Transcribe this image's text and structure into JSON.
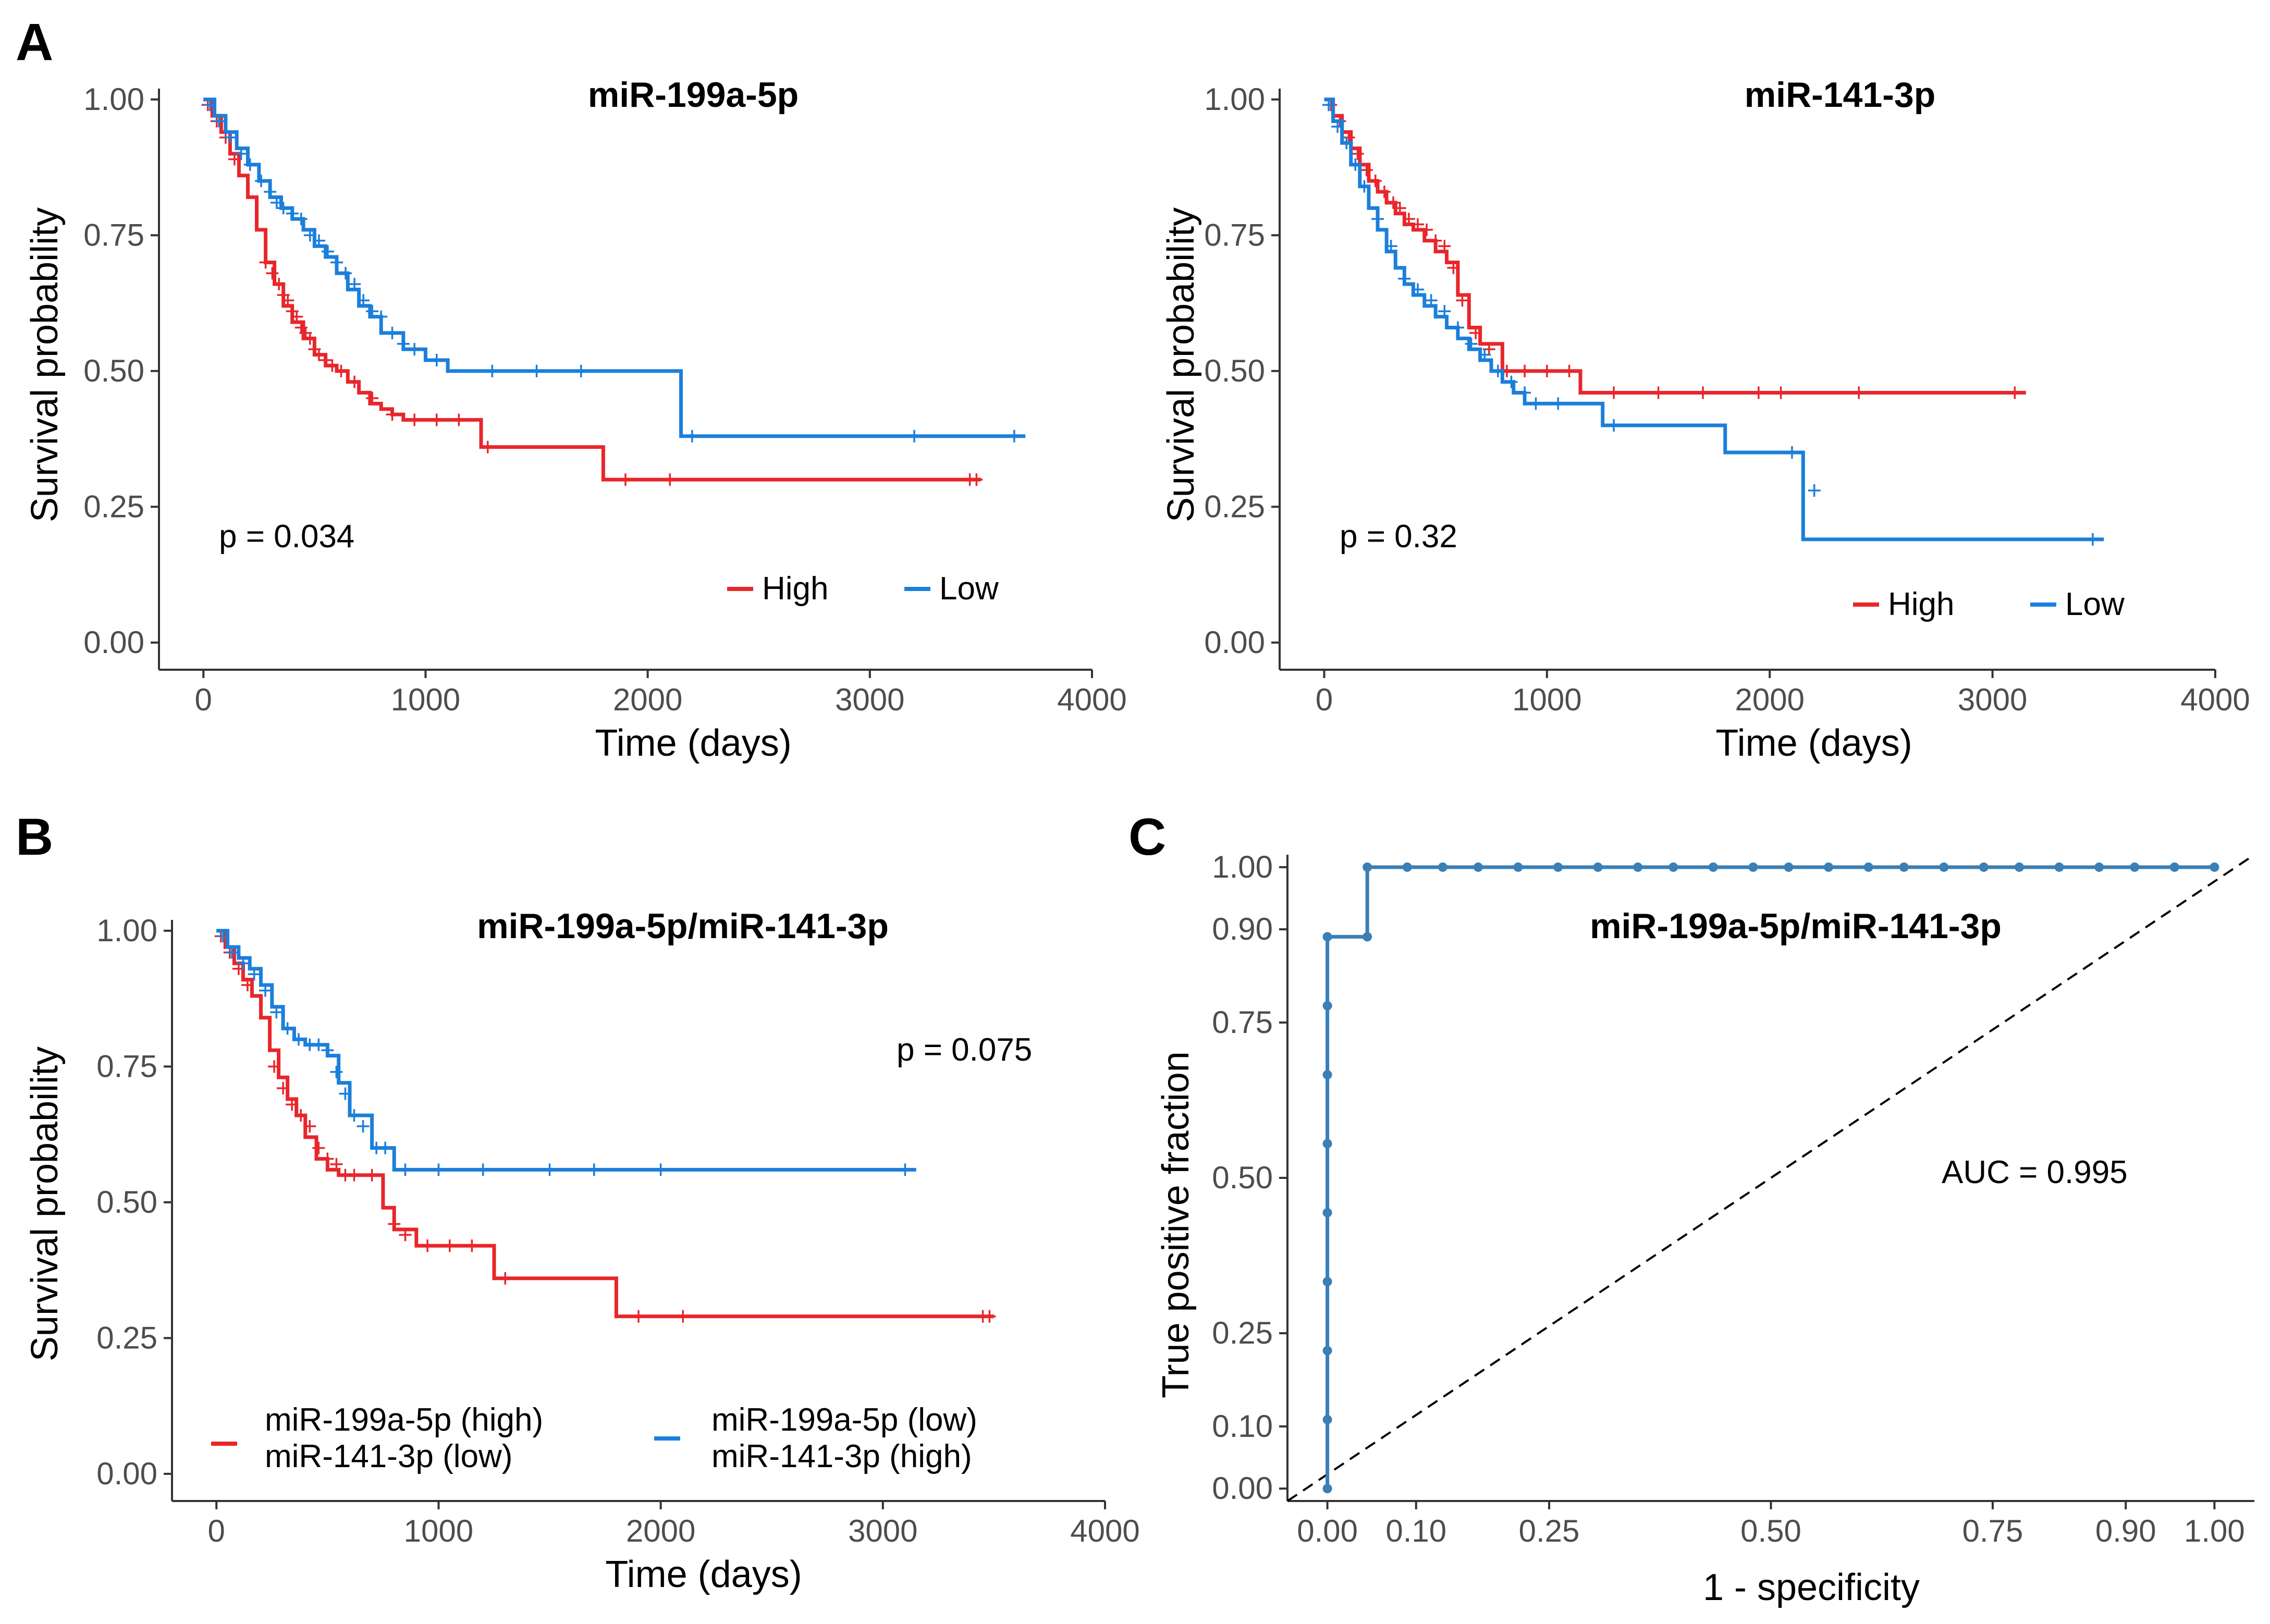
{
  "figure": {
    "panel_labels": [
      "A",
      "B",
      "C"
    ]
  },
  "chart_data": [
    {
      "id": "A1",
      "type": "line",
      "title": "miR-199a-5p",
      "xlabel": "Time (days)",
      "ylabel": "Survival probability",
      "xlim": [
        -200,
        4000
      ],
      "ylim": [
        -0.05,
        1.02
      ],
      "xticks": [
        0,
        1000,
        2000,
        3000,
        4000
      ],
      "xtick_labels": [
        "0",
        "1000",
        "2000",
        "3000",
        "4000"
      ],
      "yticks": [
        0,
        0.25,
        0.5,
        0.75,
        1.0
      ],
      "ytick_labels": [
        "0.00",
        "0.25",
        "0.50",
        "0.75",
        "1.00"
      ],
      "annotation": "p = 0.034",
      "legend": [
        "High",
        "Low"
      ],
      "legend_position": "bottom-right",
      "series": [
        {
          "name": "High",
          "color": "#e8262b",
          "x": [
            0,
            40,
            80,
            120,
            160,
            200,
            240,
            280,
            320,
            360,
            400,
            450,
            500,
            550,
            600,
            650,
            700,
            750,
            800,
            850,
            900,
            1250,
            1800,
            3500
          ],
          "y": [
            1.0,
            0.97,
            0.94,
            0.9,
            0.86,
            0.82,
            0.76,
            0.7,
            0.66,
            0.62,
            0.59,
            0.56,
            0.53,
            0.51,
            0.5,
            0.48,
            0.46,
            0.44,
            0.43,
            0.42,
            0.41,
            0.36,
            0.3,
            0.3
          ],
          "censor_x": [
            20,
            60,
            100,
            140,
            280,
            310,
            340,
            360,
            380,
            400,
            420,
            440,
            460,
            480,
            500,
            520,
            550,
            580,
            620,
            680,
            760,
            850,
            950,
            1050,
            1150,
            1280,
            1900,
            2100,
            3450,
            3480
          ],
          "censor_y": [
            0.99,
            0.96,
            0.93,
            0.89,
            0.7,
            0.68,
            0.66,
            0.64,
            0.63,
            0.61,
            0.6,
            0.58,
            0.57,
            0.56,
            0.54,
            0.53,
            0.52,
            0.51,
            0.5,
            0.48,
            0.45,
            0.42,
            0.41,
            0.41,
            0.41,
            0.36,
            0.3,
            0.3,
            0.3,
            0.3
          ]
        },
        {
          "name": "Low",
          "color": "#1b7fdb",
          "x": [
            0,
            50,
            100,
            150,
            200,
            250,
            300,
            350,
            400,
            450,
            500,
            550,
            600,
            650,
            700,
            750,
            800,
            900,
            1000,
            1100,
            2150,
            3700
          ],
          "y": [
            1.0,
            0.97,
            0.94,
            0.91,
            0.88,
            0.85,
            0.82,
            0.8,
            0.78,
            0.76,
            0.73,
            0.71,
            0.68,
            0.65,
            0.62,
            0.6,
            0.57,
            0.54,
            0.52,
            0.5,
            0.38,
            0.38
          ],
          "censor_x": [
            30,
            70,
            120,
            170,
            210,
            260,
            300,
            330,
            360,
            400,
            440,
            480,
            520,
            560,
            600,
            640,
            680,
            720,
            760,
            800,
            850,
            900,
            950,
            1050,
            1300,
            1500,
            1700,
            2200,
            3200,
            3650
          ],
          "censor_y": [
            0.99,
            0.96,
            0.93,
            0.9,
            0.88,
            0.85,
            0.83,
            0.81,
            0.8,
            0.79,
            0.78,
            0.75,
            0.74,
            0.72,
            0.7,
            0.68,
            0.66,
            0.63,
            0.61,
            0.6,
            0.57,
            0.55,
            0.54,
            0.52,
            0.5,
            0.5,
            0.5,
            0.38,
            0.38,
            0.38
          ]
        }
      ]
    },
    {
      "id": "A2",
      "type": "line",
      "title": "miR-141-3p",
      "xlabel": "Time (days)",
      "ylabel": "Survival probability",
      "xlim": [
        -200,
        4000
      ],
      "ylim": [
        -0.05,
        1.02
      ],
      "xticks": [
        0,
        1000,
        2000,
        3000,
        4000
      ],
      "xtick_labels": [
        "0",
        "1000",
        "2000",
        "3000",
        "4000"
      ],
      "yticks": [
        0,
        0.25,
        0.5,
        0.75,
        1.0
      ],
      "ytick_labels": [
        "0.00",
        "0.25",
        "0.50",
        "0.75",
        "1.00"
      ],
      "annotation": "p = 0.32",
      "legend": [
        "High",
        "Low"
      ],
      "legend_position": "bottom-right",
      "series": [
        {
          "name": "High",
          "color": "#e8262b",
          "x": [
            0,
            40,
            80,
            120,
            160,
            200,
            240,
            280,
            320,
            360,
            400,
            450,
            500,
            550,
            600,
            650,
            700,
            800,
            1150,
            3150
          ],
          "y": [
            1.0,
            0.97,
            0.94,
            0.91,
            0.88,
            0.85,
            0.83,
            0.81,
            0.79,
            0.77,
            0.76,
            0.74,
            0.72,
            0.7,
            0.64,
            0.58,
            0.55,
            0.5,
            0.46,
            0.46
          ],
          "censor_x": [
            30,
            70,
            110,
            150,
            190,
            230,
            270,
            310,
            340,
            380,
            420,
            460,
            500,
            540,
            580,
            620,
            680,
            740,
            820,
            900,
            1000,
            1100,
            1300,
            1500,
            1700,
            1950,
            2050,
            2400,
            3100
          ],
          "censor_y": [
            0.99,
            0.96,
            0.93,
            0.9,
            0.87,
            0.85,
            0.83,
            0.81,
            0.8,
            0.78,
            0.77,
            0.76,
            0.74,
            0.73,
            0.69,
            0.63,
            0.57,
            0.54,
            0.5,
            0.5,
            0.5,
            0.5,
            0.46,
            0.46,
            0.46,
            0.46,
            0.46,
            0.46,
            0.46
          ]
        },
        {
          "name": "Low",
          "color": "#1b7fdb",
          "x": [
            0,
            40,
            80,
            120,
            160,
            200,
            240,
            280,
            320,
            360,
            400,
            450,
            500,
            550,
            600,
            650,
            700,
            750,
            800,
            850,
            900,
            1000,
            1150,
            1250,
            1800,
            2150,
            3500
          ],
          "y": [
            1.0,
            0.96,
            0.92,
            0.88,
            0.84,
            0.8,
            0.76,
            0.72,
            0.69,
            0.66,
            0.64,
            0.62,
            0.6,
            0.58,
            0.56,
            0.54,
            0.52,
            0.5,
            0.48,
            0.46,
            0.44,
            0.44,
            0.44,
            0.4,
            0.35,
            0.19,
            0.19
          ],
          "censor_x": [
            20,
            60,
            100,
            140,
            180,
            240,
            300,
            360,
            420,
            480,
            540,
            600,
            660,
            720,
            780,
            840,
            900,
            950,
            1050,
            1300,
            2100,
            2200,
            3450
          ],
          "censor_y": [
            0.99,
            0.95,
            0.92,
            0.88,
            0.84,
            0.78,
            0.73,
            0.67,
            0.65,
            0.63,
            0.61,
            0.58,
            0.55,
            0.53,
            0.5,
            0.48,
            0.46,
            0.44,
            0.44,
            0.4,
            0.35,
            0.28,
            0.19
          ]
        }
      ]
    },
    {
      "id": "B",
      "type": "line",
      "title": "miR-199a-5p/miR-141-3p",
      "xlabel": "Time (days)",
      "ylabel": "Survival probability",
      "xlim": [
        -200,
        4000
      ],
      "ylim": [
        -0.05,
        1.02
      ],
      "xticks": [
        0,
        1000,
        2000,
        3000,
        4000
      ],
      "xtick_labels": [
        "0",
        "1000",
        "2000",
        "3000",
        "4000"
      ],
      "yticks": [
        0,
        0.25,
        0.5,
        0.75,
        1.0
      ],
      "ytick_labels": [
        "0.00",
        "0.25",
        "0.50",
        "0.75",
        "1.00"
      ],
      "annotation": "p = 0.075",
      "legend": [
        {
          "line1": "miR-199a-5p (high)",
          "line2": "miR-141-3p (low)"
        },
        {
          "line1": "miR-199a-5p (low)",
          "line2": "miR-141-3p (high)"
        }
      ],
      "legend_position": "bottom",
      "series": [
        {
          "name": "miR-199a-5p (high) miR-141-3p (low)",
          "color": "#e8262b",
          "x": [
            0,
            40,
            80,
            120,
            160,
            200,
            240,
            280,
            320,
            360,
            400,
            450,
            500,
            550,
            650,
            750,
            800,
            900,
            1250,
            1800,
            3500
          ],
          "y": [
            1.0,
            0.97,
            0.94,
            0.91,
            0.88,
            0.84,
            0.78,
            0.73,
            0.69,
            0.66,
            0.62,
            0.58,
            0.56,
            0.55,
            0.55,
            0.49,
            0.45,
            0.42,
            0.36,
            0.29,
            0.29
          ],
          "censor_x": [
            20,
            60,
            100,
            140,
            260,
            300,
            340,
            380,
            420,
            460,
            500,
            540,
            580,
            620,
            700,
            800,
            850,
            950,
            1050,
            1150,
            1300,
            1900,
            2100,
            3450,
            3480
          ],
          "censor_y": [
            0.99,
            0.96,
            0.93,
            0.9,
            0.75,
            0.71,
            0.68,
            0.66,
            0.64,
            0.6,
            0.58,
            0.57,
            0.55,
            0.55,
            0.55,
            0.46,
            0.44,
            0.42,
            0.42,
            0.42,
            0.36,
            0.29,
            0.29,
            0.29,
            0.29
          ]
        },
        {
          "name": "miR-199a-5p (low) miR-141-3p (high)",
          "color": "#1b7fdb",
          "x": [
            0,
            50,
            100,
            150,
            200,
            250,
            300,
            350,
            400,
            500,
            550,
            600,
            700,
            800,
            3150
          ],
          "y": [
            1.0,
            0.97,
            0.95,
            0.93,
            0.9,
            0.86,
            0.82,
            0.8,
            0.79,
            0.77,
            0.72,
            0.66,
            0.6,
            0.56,
            0.56
          ],
          "censor_x": [
            30,
            70,
            120,
            170,
            220,
            270,
            320,
            370,
            420,
            460,
            500,
            540,
            580,
            620,
            660,
            720,
            760,
            850,
            1000,
            1200,
            1500,
            1700,
            2000,
            3100
          ],
          "censor_y": [
            0.99,
            0.96,
            0.94,
            0.92,
            0.89,
            0.85,
            0.82,
            0.8,
            0.79,
            0.79,
            0.78,
            0.74,
            0.7,
            0.66,
            0.64,
            0.6,
            0.6,
            0.56,
            0.56,
            0.56,
            0.56,
            0.56,
            0.56,
            0.56
          ]
        }
      ]
    },
    {
      "id": "C",
      "type": "line",
      "title": "miR-199a-5p/miR-141-3p",
      "xlabel": "1 - specificity",
      "ylabel": "True positive fraction",
      "xlim": [
        -0.045,
        1.045
      ],
      "ylim": [
        -0.02,
        1.02
      ],
      "xticks": [
        0,
        0.1,
        0.25,
        0.5,
        0.75,
        0.9,
        1.0
      ],
      "xtick_labels": [
        "0.00",
        "0.10",
        "0.25",
        "0.50",
        "0.75",
        "0.90",
        "1.00"
      ],
      "yticks": [
        0,
        0.1,
        0.25,
        0.5,
        0.75,
        0.9,
        1.0
      ],
      "ytick_labels": [
        "0.00",
        "0.10",
        "0.25",
        "0.50",
        "0.75",
        "0.90",
        "1.00"
      ],
      "annotation": "AUC = 0.995",
      "color": "#3a7fb6",
      "diagonal": true,
      "roc_x": [
        0,
        0,
        0,
        0,
        0,
        0,
        0,
        0,
        0,
        0.045,
        0.045,
        0.09,
        0.13,
        0.17,
        0.215,
        0.26,
        0.305,
        0.35,
        0.39,
        0.435,
        0.48,
        0.52,
        0.565,
        0.61,
        0.65,
        0.695,
        0.74,
        0.78,
        0.825,
        0.87,
        0.91,
        0.955,
        1.0
      ],
      "roc_y": [
        0,
        0.111,
        0.222,
        0.333,
        0.444,
        0.555,
        0.666,
        0.777,
        0.888,
        0.888,
        1.0,
        1.0,
        1.0,
        1.0,
        1.0,
        1.0,
        1.0,
        1.0,
        1.0,
        1.0,
        1.0,
        1.0,
        1.0,
        1.0,
        1.0,
        1.0,
        1.0,
        1.0,
        1.0,
        1.0,
        1.0,
        1.0,
        1.0
      ]
    }
  ]
}
